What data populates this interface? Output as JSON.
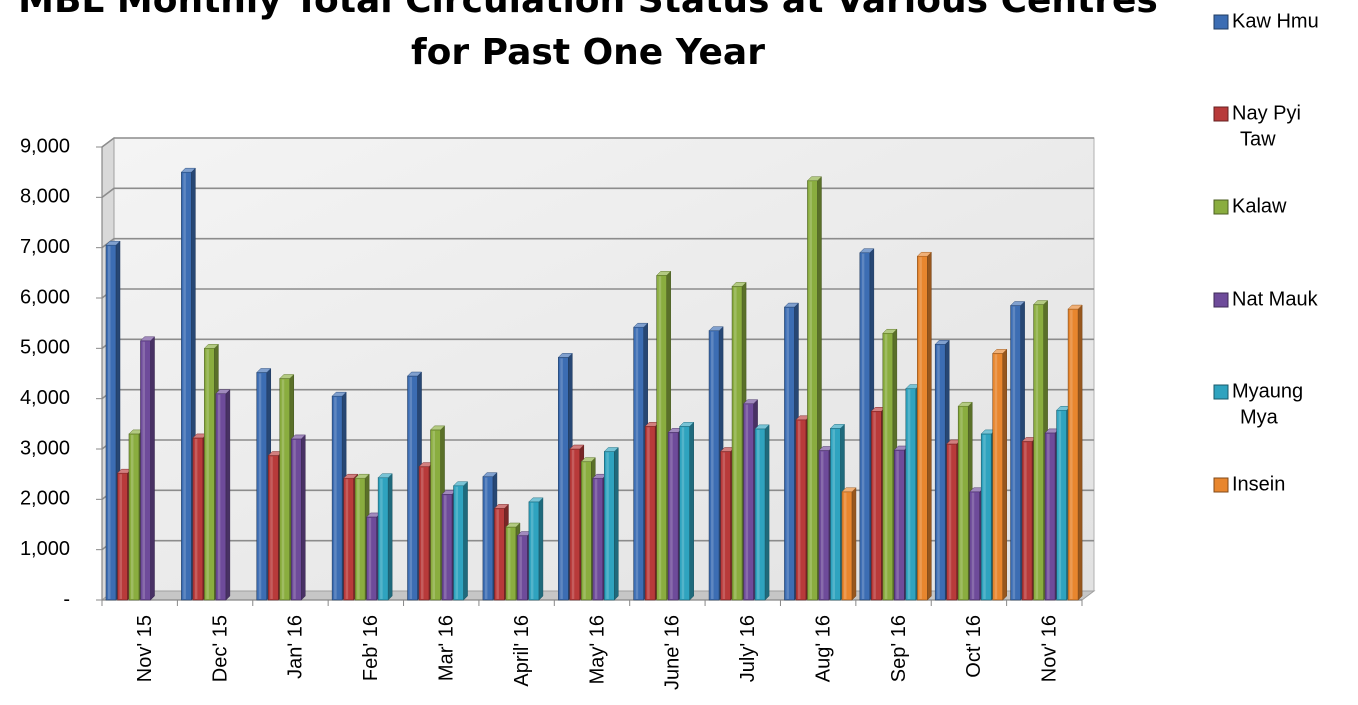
{
  "chart_data": {
    "type": "bar",
    "title": "MBL Monthly Total Circulation Status at Various Centres for Past One Year",
    "title_lines": [
      "MBL Monthly Total Circulation Status at Various Centres",
      "for Past One Year"
    ],
    "categories": [
      "Nov' 15",
      "Dec' 15",
      "Jan' 16",
      "Feb' 16",
      "Mar' 16",
      "April' 16",
      "May' 16",
      "June' 16",
      "July' 16",
      "Aug' 16",
      "Sep' 16",
      "Oct' 16",
      "Nov' 16"
    ],
    "y_ticks": [
      "-",
      "1,000",
      "2,000",
      "3,000",
      "4,000",
      "5,000",
      "6,000",
      "7,000",
      "8,000",
      "9,000"
    ],
    "ylim": [
      0,
      9000
    ],
    "grid": true,
    "legend_position": "right",
    "xlabel": "",
    "ylabel": "",
    "series": [
      {
        "name": "Kaw Hmu",
        "legend_lines": [
          "Kaw Hmu"
        ],
        "color": "#3c6db3",
        "values": [
          7050,
          8500,
          4520,
          4050,
          4450,
          2450,
          4820,
          5420,
          5350,
          5820,
          6900,
          5080,
          5850
        ]
      },
      {
        "name": "Nay Pyi Taw",
        "legend_lines": [
          "Nay Pyi",
          "Taw"
        ],
        "color": "#b83a3a",
        "values": [
          2520,
          3220,
          2870,
          2420,
          2650,
          1820,
          3000,
          3450,
          2950,
          3580,
          3750,
          3100,
          3150
        ]
      },
      {
        "name": "Kalaw",
        "legend_lines": [
          "Kalaw"
        ],
        "color": "#8aad3f",
        "values": [
          3300,
          5000,
          4400,
          2420,
          3380,
          1450,
          2750,
          6450,
          6230,
          8330,
          5300,
          3850,
          5870
        ]
      },
      {
        "name": "Nat Mauk",
        "legend_lines": [
          "Nat Mauk"
        ],
        "color": "#6e4b9a",
        "values": [
          5150,
          4100,
          3200,
          1650,
          2100,
          1280,
          2420,
          3330,
          3900,
          2970,
          2980,
          2150,
          3320
        ]
      },
      {
        "name": "Myaung Mya",
        "legend_lines": [
          "Myaung",
          "Mya"
        ],
        "color": "#2fa3bf",
        "values": [
          null,
          null,
          null,
          2430,
          2270,
          1950,
          2950,
          3450,
          3400,
          3410,
          4200,
          3300,
          3770
        ]
      },
      {
        "name": "Insein",
        "legend_lines": [
          "Insein"
        ],
        "color": "#e8862e",
        "values": [
          null,
          null,
          null,
          null,
          null,
          null,
          null,
          null,
          null,
          2150,
          6830,
          4900,
          5780
        ]
      }
    ]
  }
}
